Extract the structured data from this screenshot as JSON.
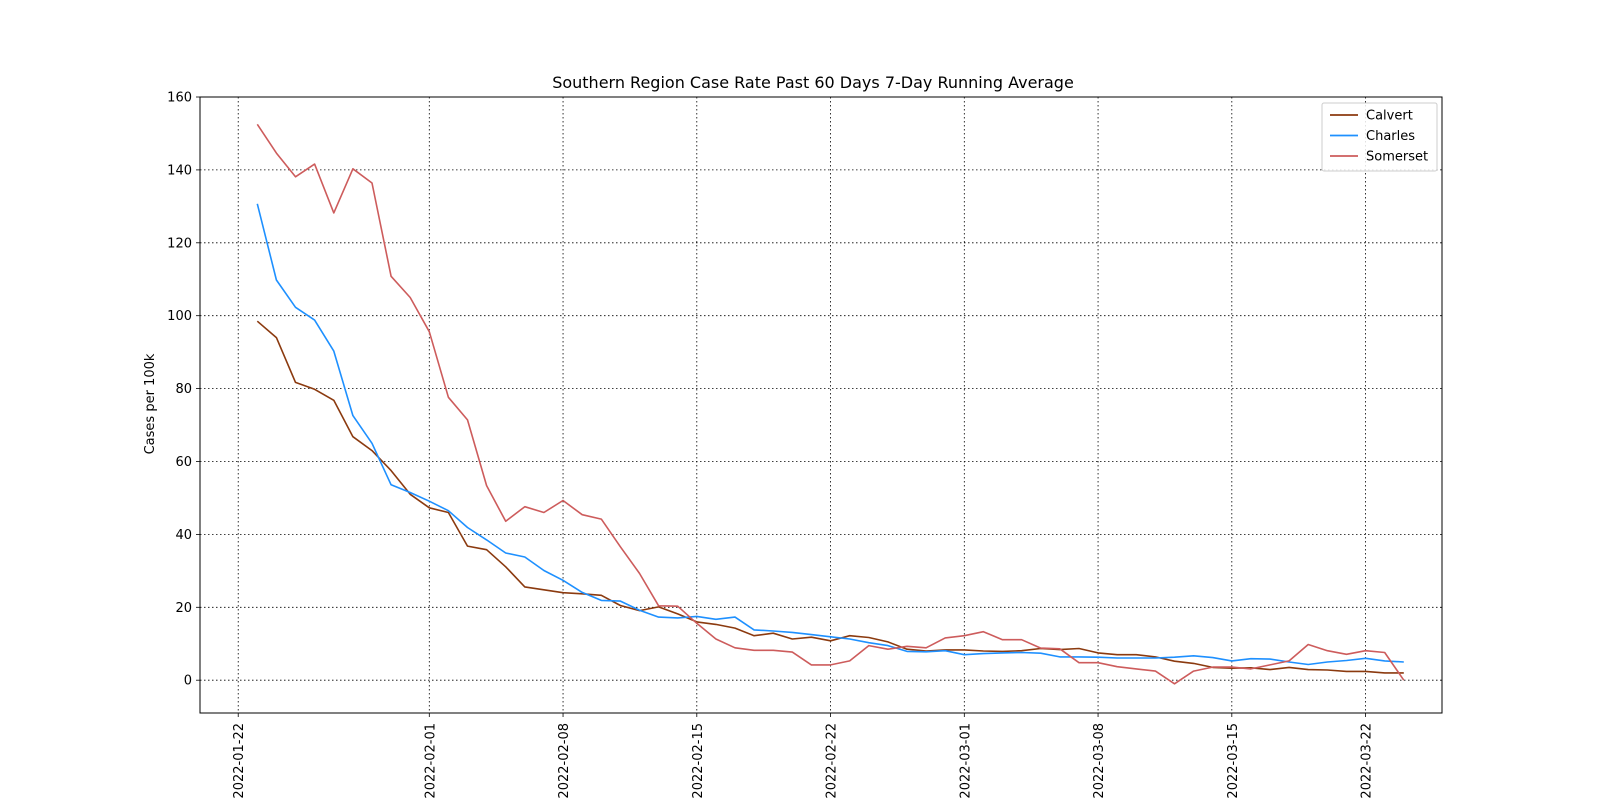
{
  "chart_data": {
    "type": "line",
    "title": "Southern Region Case Rate  Past 60 Days 7-Day Running Average",
    "xlabel": "",
    "ylabel": "Cases per 100k",
    "x_start": "2022-01-23",
    "x_tick_labels": [
      "2022-01-22",
      "2022-02-01",
      "2022-02-08",
      "2022-02-15",
      "2022-02-22",
      "2022-03-01",
      "2022-03-08",
      "2022-03-15",
      "2022-03-22"
    ],
    "y_ticks": [
      0,
      20,
      40,
      60,
      80,
      100,
      120,
      140,
      160
    ],
    "xlim": [
      "2022-01-20",
      "2022-03-26"
    ],
    "ylim": [
      -9,
      160
    ],
    "grid": true,
    "legend_position": "top-right",
    "series": [
      {
        "name": "Calvert",
        "color": "#8B3A0F",
        "values": [
          98.5,
          94,
          81.7,
          79.8,
          76.8,
          66.8,
          63,
          57.5,
          51,
          47.3,
          46,
          36.8,
          35.8,
          31.1,
          25.6,
          24.8,
          24,
          23.7,
          23.3,
          20.5,
          19.1,
          20.1,
          18.2,
          16,
          15.3,
          14.3,
          12.2,
          12.9,
          11.3,
          11.8,
          10.8,
          12.2,
          11.7,
          10.5,
          8.5,
          8,
          8.3,
          8.3,
          8,
          7.9,
          8.1,
          8.7,
          8.4,
          8.7,
          7.5,
          7,
          7,
          6.4,
          5.2,
          4.6,
          3.5,
          3.3,
          3.4,
          2.9,
          3.5,
          2.9,
          2.8,
          2.4,
          2.4,
          2,
          2
        ]
      },
      {
        "name": "Charles",
        "color": "#1E90FF",
        "values": [
          130.7,
          109.8,
          102.3,
          98.8,
          90.3,
          72.6,
          65,
          53.6,
          51.5,
          49.1,
          46.5,
          41.9,
          38.5,
          34.9,
          33.8,
          30.1,
          27.4,
          24.1,
          21.9,
          21.7,
          19.2,
          17.3,
          17.1,
          17.5,
          16.7,
          17.3,
          13.8,
          13.5,
          13.1,
          12.5,
          11.9,
          11.3,
          10.3,
          9.5,
          7.9,
          7.8,
          8.1,
          7,
          7.3,
          7.5,
          7.6,
          7.4,
          6.4,
          6.4,
          6.3,
          6.1,
          6.1,
          6.1,
          6.3,
          6.7,
          6.2,
          5.3,
          5.9,
          5.8,
          5,
          4.3,
          5,
          5.4,
          6,
          5.3,
          5
        ]
      },
      {
        "name": "Somerset",
        "color": "#CD5C5C",
        "values": [
          152.5,
          144.6,
          138.1,
          141.6,
          128.2,
          140.3,
          136.4,
          110.8,
          105,
          95.6,
          77.6,
          71.4,
          53.4,
          43.6,
          47.6,
          46,
          49.3,
          45.4,
          44.2,
          36.6,
          29.3,
          20.4,
          20.3,
          15.6,
          11.3,
          8.9,
          8.2,
          8.2,
          7.7,
          4.2,
          4.2,
          5.3,
          9.5,
          8.5,
          9.3,
          8.9,
          11.6,
          12.2,
          13.3,
          11.1,
          11.1,
          8.8,
          8.6,
          4.8,
          4.8,
          3.7,
          3.1,
          2.5,
          -1,
          2.5,
          3.6,
          3.6,
          3.1,
          4.2,
          5.3,
          9.8,
          8.1,
          7.1,
          8.1,
          7.6,
          0
        ]
      }
    ]
  }
}
